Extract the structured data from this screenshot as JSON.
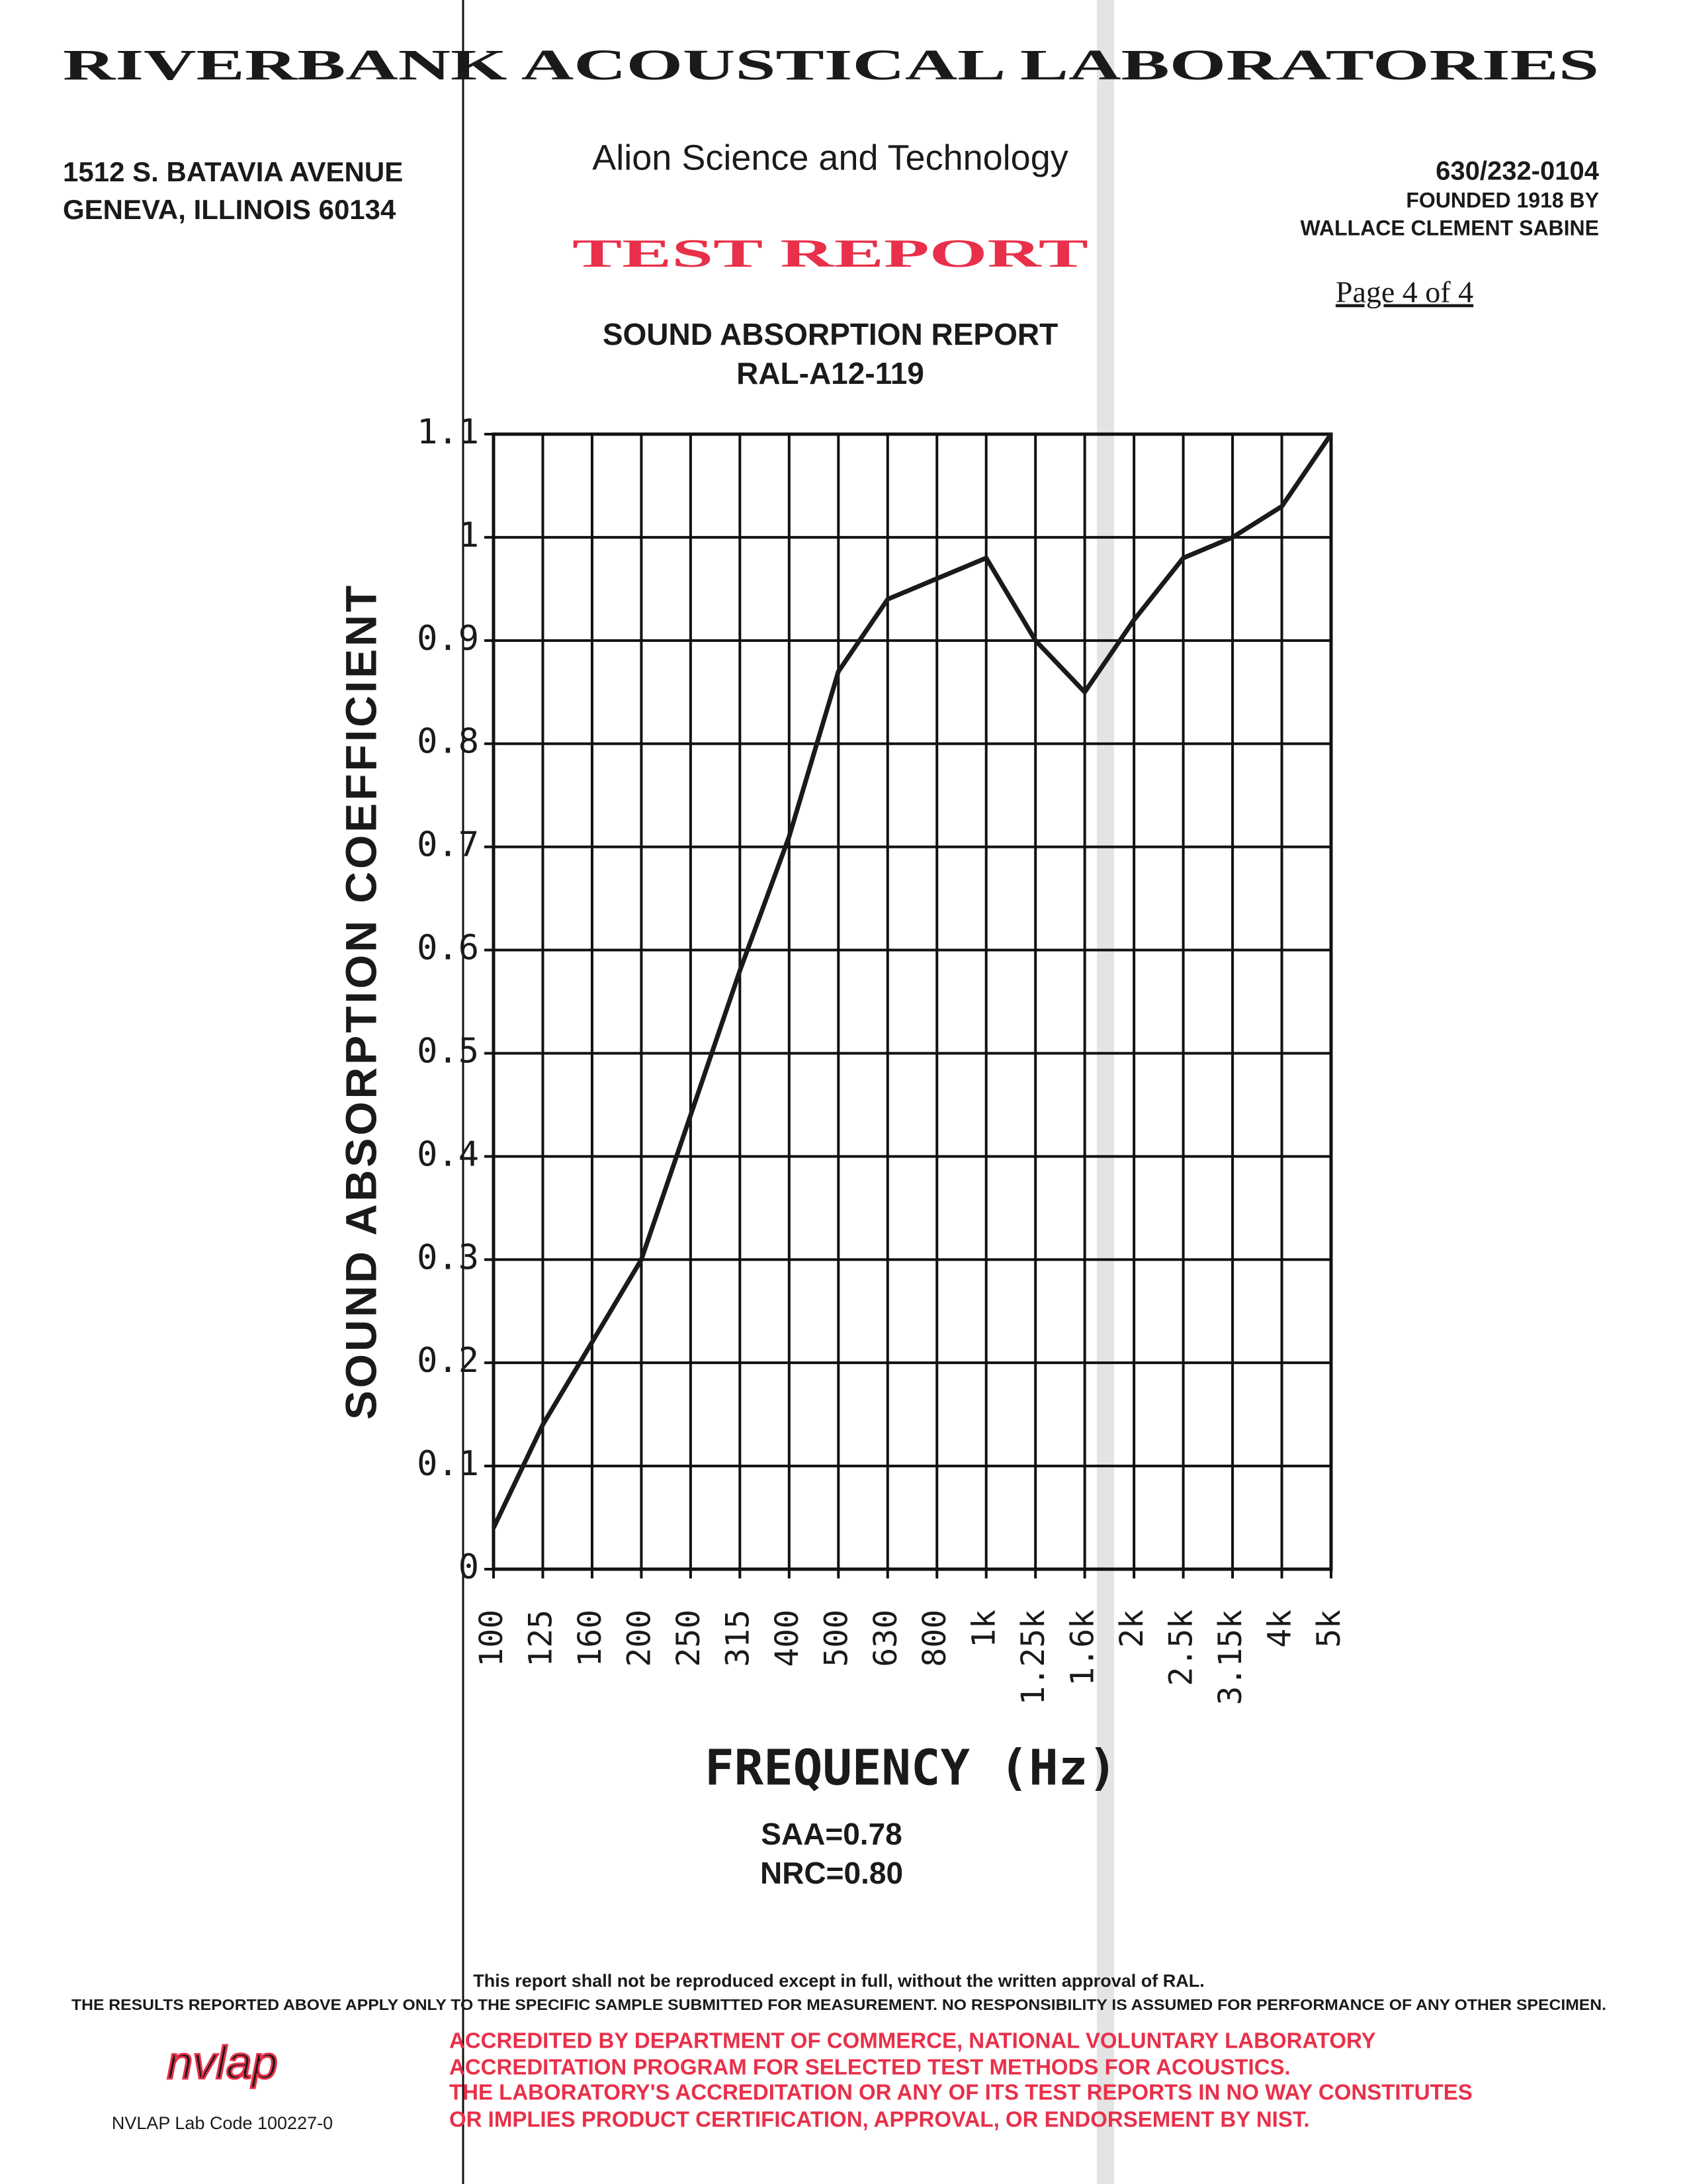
{
  "header": {
    "lab_name": "RIVERBANK ACOUSTICAL LABORATORIES",
    "address": [
      "1512 S. BATAVIA AVENUE",
      "GENEVA, ILLINOIS 60134"
    ],
    "company": "Alion Science and Technology",
    "report_label": "TEST REPORT",
    "phone": "630/232-0104",
    "founded": [
      "FOUNDED 1918 BY",
      "WALLACE CLEMENT SABINE"
    ],
    "page": "Page 4 of 4"
  },
  "chart_data": {
    "type": "line",
    "title": "SOUND ABSORPTION REPORT",
    "subtitle": "RAL-A12-119",
    "x_label": "FREQUENCY (Hz)",
    "y_label": "SOUND ABSORPTION COEFFICIENT",
    "categories": [
      "100",
      "125",
      "160",
      "200",
      "250",
      "315",
      "400",
      "500",
      "630",
      "800",
      "1k",
      "1.25k",
      "1.6k",
      "2k",
      "2.5k",
      "3.15k",
      "4k",
      "5k"
    ],
    "values": [
      0.04,
      0.14,
      0.22,
      0.3,
      0.44,
      0.58,
      0.71,
      0.87,
      0.94,
      0.96,
      0.98,
      0.9,
      0.85,
      0.92,
      0.98,
      1.0,
      1.03,
      1.1
    ],
    "color": "#1a1a1a",
    "ylim": [
      0,
      1.1
    ],
    "yticks": [
      0,
      0.1,
      0.2,
      0.3,
      0.4,
      0.5,
      0.6,
      0.7,
      0.8,
      0.9,
      1,
      1.1
    ],
    "grid": true
  },
  "results": [
    "SAA=0.78",
    "NRC=0.80"
  ],
  "footer": {
    "notice": "This report shall not be reproduced except in full, without the written approval of RAL.",
    "disclaimer": "THE RESULTS REPORTED ABOVE APPLY ONLY TO THE SPECIFIC SAMPLE SUBMITTED FOR MEASUREMENT. NO RESPONSIBILITY IS ASSUMED FOR PERFORMANCE OF ANY OTHER SPECIMEN.",
    "logo": "nvlap",
    "lab_code": "NVLAP Lab Code 100227-0",
    "accreditation": [
      "ACCREDITED BY DEPARTMENT OF COMMERCE, NATIONAL VOLUNTARY LABORATORY",
      "ACCREDITATION PROGRAM FOR SELECTED TEST METHODS FOR ACOUSTICS.",
      "THE LABORATORY'S ACCREDITATION OR ANY OF ITS TEST REPORTS IN NO WAY CONSTITUTES",
      "OR IMPLIES PRODUCT CERTIFICATION, APPROVAL, OR ENDORSEMENT BY NIST."
    ]
  }
}
